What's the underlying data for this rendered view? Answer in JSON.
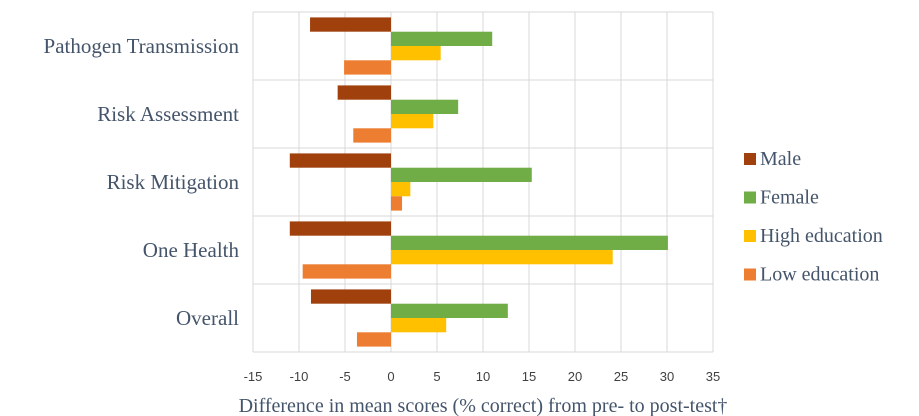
{
  "chart_data": {
    "type": "bar",
    "orientation": "horizontal",
    "categories": [
      "Pathogen Transmission",
      "Risk Assessment",
      "Risk Mitigation",
      "One Health",
      "Overall"
    ],
    "series": [
      {
        "name": "Male",
        "color": "#a0410d",
        "values": [
          -8.8,
          -5.8,
          -11.0,
          -11.0,
          -8.7
        ]
      },
      {
        "name": "Female",
        "color": "#70ad47",
        "values": [
          11.0,
          7.3,
          15.3,
          30.1,
          12.7
        ]
      },
      {
        "name": "High education",
        "color": "#ffc000",
        "values": [
          5.4,
          4.6,
          2.1,
          24.1,
          6.0
        ]
      },
      {
        "name": "Low education",
        "color": "#ed7d31",
        "values": [
          -5.1,
          -4.1,
          1.2,
          -9.6,
          -3.7
        ]
      }
    ],
    "xlabel": "Difference in mean scores (% correct) from pre- to post-test†",
    "ylabel": "",
    "xlim": [
      -15,
      35
    ],
    "xticks": [
      -15,
      -10,
      -5,
      0,
      5,
      10,
      15,
      20,
      25,
      30,
      35
    ],
    "grid": true,
    "legend_position": "right"
  }
}
